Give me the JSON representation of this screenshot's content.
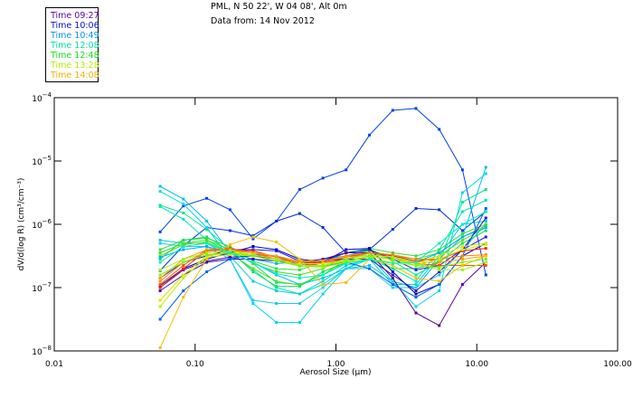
{
  "header": {
    "location": "PML, N 50 22', W 04 08', Alt 0m",
    "date": "Data from: 14 Nov 2012"
  },
  "legend": [
    {
      "label": "Time 09:27",
      "color": "#5a00a0"
    },
    {
      "label": "Time 10:06",
      "color": "#0010e0"
    },
    {
      "label": "Time 10:49",
      "color": "#0090ff"
    },
    {
      "label": "Time 12:08",
      "color": "#00e0a0"
    },
    {
      "label": "Time 12:48",
      "color": "#10e020"
    },
    {
      "label": "Time 13:28",
      "color": "#b0f000"
    },
    {
      "label": "Time 14:08",
      "color": "#f0b000"
    }
  ],
  "chart_data": {
    "type": "line",
    "xscale": "log",
    "yscale": "log",
    "xlabel": "Aerosol Size (µm)",
    "ylabel": "dV/d(log R) (cm³/cm⁻³)",
    "xlim": [
      0.01,
      100.0
    ],
    "ylim": [
      1e-08,
      0.0001
    ],
    "x_tick_labels": [
      "0.01",
      "0.10",
      "1.00",
      "10.00",
      "100.00"
    ],
    "y_tick_labels": [
      {
        "base": "10",
        "exp": "-4"
      },
      {
        "base": "10",
        "exp": "-5"
      },
      {
        "base": "10",
        "exp": "-6"
      },
      {
        "base": "10",
        "exp": "-7"
      },
      {
        "base": "10",
        "exp": "-8"
      }
    ],
    "x": [
      0.0565,
      0.0826,
      0.121,
      0.177,
      0.258,
      0.378,
      0.553,
      0.808,
      1.18,
      1.73,
      2.53,
      3.7,
      5.41,
      7.91,
      11.6
    ],
    "series_log10": [
      {
        "color": "#0040f0",
        "values": [
          -6.12,
          -5.71,
          -5.59,
          -5.77,
          -6.23,
          -5.95,
          -5.45,
          -5.27,
          -5.14,
          -4.59,
          -4.2,
          -4.17,
          -4.5,
          -5.14,
          -6.8
        ]
      },
      {
        "color": "#0030e0",
        "values": [
          -6.73,
          -6.34,
          -6.05,
          -6.1,
          -6.18,
          -5.95,
          -5.83,
          -6.05,
          -6.45,
          -6.4,
          -6.08,
          -5.75,
          -5.77,
          -6.1,
          -5.8
        ]
      },
      {
        "color": "#00c0f0",
        "values": [
          -5.4,
          -5.6,
          -5.95,
          -6.45,
          -6.6,
          -6.8,
          -6.95,
          -6.85,
          -6.7,
          -6.65,
          -6.9,
          -7.0,
          -6.55,
          -6.2,
          -5.1
        ]
      },
      {
        "color": "#00d8f0",
        "values": [
          -5.48,
          -5.68,
          -6.05,
          -6.55,
          -7.25,
          -7.55,
          -7.55,
          -7.1,
          -6.7,
          -6.5,
          -6.9,
          -7.3,
          -7.05,
          -5.5,
          -5.2
        ]
      },
      {
        "color": "#00e890",
        "values": [
          -5.7,
          -5.82,
          -6.08,
          -6.4,
          -6.62,
          -6.92,
          -6.95,
          -6.8,
          -6.6,
          -6.4,
          -6.58,
          -6.8,
          -6.6,
          -5.65,
          -5.45
        ]
      },
      {
        "color": "#00e8b0",
        "values": [
          -5.72,
          -5.92,
          -6.25,
          -6.45,
          -6.72,
          -7.0,
          -7.1,
          -6.95,
          -6.7,
          -6.55,
          -6.7,
          -6.9,
          -6.4,
          -5.8,
          -5.62
        ]
      },
      {
        "color": "#00d0e0",
        "values": [
          -6.25,
          -6.3,
          -6.3,
          -6.5,
          -6.9,
          -7.05,
          -7.1,
          -6.9,
          -6.65,
          -6.55,
          -6.95,
          -6.95,
          -6.5,
          -6.0,
          -5.95
        ]
      },
      {
        "color": "#20c8f0",
        "values": [
          -6.3,
          -6.35,
          -6.35,
          -6.55,
          -7.2,
          -7.25,
          -7.25,
          -7.0,
          -6.7,
          -6.7,
          -7.0,
          -7.0,
          -6.8,
          -6.4,
          -6.0
        ]
      },
      {
        "color": "#30e040",
        "values": [
          -6.4,
          -6.25,
          -6.22,
          -6.35,
          -6.58,
          -6.7,
          -6.72,
          -6.6,
          -6.45,
          -6.38,
          -6.45,
          -6.5,
          -6.4,
          -6.15,
          -6.0
        ]
      },
      {
        "color": "#40e020",
        "values": [
          -6.45,
          -6.3,
          -6.25,
          -6.4,
          -6.62,
          -6.75,
          -6.8,
          -6.7,
          -6.5,
          -6.42,
          -6.5,
          -6.55,
          -6.45,
          -6.2,
          -6.02
        ]
      },
      {
        "color": "#60e010",
        "values": [
          -6.5,
          -6.32,
          -6.28,
          -6.45,
          -6.7,
          -6.9,
          -6.96,
          -6.8,
          -6.55,
          -6.45,
          -6.55,
          -6.6,
          -6.5,
          -6.25,
          -6.05
        ]
      },
      {
        "color": "#10e060",
        "values": [
          -6.55,
          -6.25,
          -6.2,
          -6.42,
          -6.75,
          -6.98,
          -6.98,
          -6.75,
          -6.6,
          -6.5,
          -6.7,
          -6.7,
          -6.6,
          -6.3,
          -6.1
        ]
      },
      {
        "color": "#00b0ff",
        "values": [
          -6.52,
          -6.4,
          -6.35,
          -6.45,
          -6.55,
          -6.62,
          -6.6,
          -6.55,
          -6.5,
          -6.4,
          -6.55,
          -6.6,
          -6.45,
          -6.2,
          -6.05
        ]
      },
      {
        "color": "#2020e0",
        "values": [
          -6.85,
          -6.6,
          -6.5,
          -6.4,
          -6.4,
          -6.42,
          -6.58,
          -6.58,
          -6.45,
          -6.4,
          -6.55,
          -6.72,
          -6.65,
          -6.4,
          -6.2
        ]
      },
      {
        "color": "#0000d0",
        "values": [
          -6.97,
          -6.7,
          -6.55,
          -6.45,
          -6.35,
          -6.4,
          -6.55,
          -6.6,
          -6.4,
          -6.38,
          -6.75,
          -7.1,
          -6.95,
          -6.5,
          -6.3
        ]
      },
      {
        "color": "#3010c0",
        "values": [
          -7.05,
          -6.8,
          -6.6,
          -6.55,
          -6.55,
          -6.58,
          -6.62,
          -6.58,
          -6.55,
          -6.55,
          -6.8,
          -7.05,
          -6.75,
          -6.4,
          -5.9
        ]
      },
      {
        "color": "#5a00a0",
        "values": [
          -7.0,
          -6.72,
          -6.58,
          -6.52,
          -6.5,
          -6.55,
          -6.6,
          -6.55,
          -6.45,
          -6.45,
          -6.85,
          -7.4,
          -7.6,
          -6.95,
          -6.6
        ]
      },
      {
        "color": "#0060ff",
        "values": [
          -7.5,
          -7.05,
          -6.75,
          -6.55,
          -6.48,
          -6.5,
          -6.62,
          -6.66,
          -6.6,
          -6.7,
          -6.95,
          -7.15,
          -6.95,
          -6.5,
          -5.75
        ]
      },
      {
        "color": "#ff5000",
        "values": [
          -6.95,
          -6.65,
          -6.4,
          -6.38,
          -6.45,
          -6.55,
          -6.65,
          -6.62,
          -6.55,
          -6.48,
          -6.52,
          -6.62,
          -6.65,
          -6.65,
          -6.65
        ]
      },
      {
        "color": "#ff2000",
        "values": [
          -7.0,
          -6.7,
          -6.42,
          -6.4,
          -6.42,
          -6.52,
          -6.62,
          -6.6,
          -6.52,
          -6.45,
          -6.5,
          -6.58,
          -6.55,
          -6.42,
          -6.38
        ]
      },
      {
        "color": "#ff8000",
        "values": [
          -6.9,
          -6.6,
          -6.45,
          -6.42,
          -6.45,
          -6.52,
          -6.6,
          -6.58,
          -6.5,
          -6.45,
          -6.48,
          -6.55,
          -6.55,
          -6.5,
          -6.48
        ]
      },
      {
        "color": "#ffa000",
        "values": [
          -6.85,
          -6.55,
          -6.4,
          -6.4,
          -6.45,
          -6.5,
          -6.58,
          -6.58,
          -6.52,
          -6.48,
          -6.52,
          -6.6,
          -6.6,
          -6.55,
          -6.5
        ]
      },
      {
        "color": "#f0c000",
        "values": [
          -7.95,
          -7.15,
          -6.55,
          -6.32,
          -6.2,
          -6.28,
          -6.55,
          -6.95,
          -6.92,
          -6.55,
          -6.65,
          -6.85,
          -6.9,
          -6.65,
          -6.5
        ]
      },
      {
        "color": "#e0e000",
        "values": [
          -7.2,
          -6.8,
          -6.5,
          -6.45,
          -6.48,
          -6.55,
          -6.62,
          -6.62,
          -6.58,
          -6.52,
          -6.55,
          -6.62,
          -6.5,
          -6.35,
          -6.3
        ]
      },
      {
        "color": "#c0f000",
        "values": [
          -7.3,
          -6.85,
          -6.52,
          -6.48,
          -6.5,
          -6.58,
          -6.65,
          -6.68,
          -6.6,
          -6.55,
          -6.6,
          -6.65,
          -6.55,
          -6.4,
          -6.32
        ]
      },
      {
        "color": "#a0f020",
        "values": [
          -6.72,
          -6.55,
          -6.45,
          -6.42,
          -6.48,
          -6.55,
          -6.65,
          -6.65,
          -6.55,
          -6.48,
          -6.52,
          -6.62,
          -6.72,
          -6.72,
          -6.6
        ]
      },
      {
        "color": "#80f000",
        "values": [
          -6.8,
          -6.6,
          -6.48,
          -6.45,
          -6.5,
          -6.58,
          -6.66,
          -6.66,
          -6.58,
          -6.5,
          -6.55,
          -6.65,
          -6.68,
          -6.6,
          -6.55
        ]
      },
      {
        "color": "#00f0c0",
        "values": [
          -6.6,
          -6.35,
          -6.3,
          -6.45,
          -6.6,
          -6.78,
          -6.85,
          -6.8,
          -6.62,
          -6.55,
          -6.62,
          -6.6,
          -6.3,
          -6.0,
          -5.8
        ]
      }
    ]
  }
}
